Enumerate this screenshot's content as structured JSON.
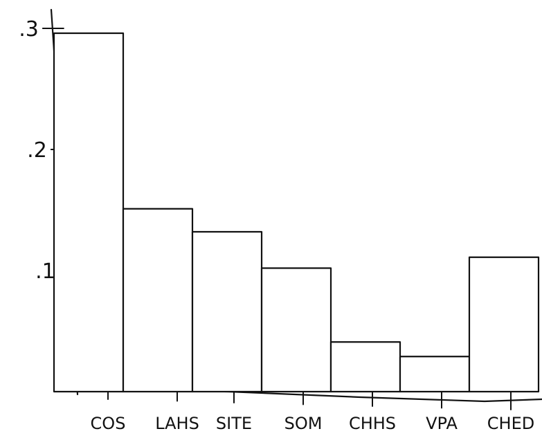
{
  "chart_data": {
    "type": "bar",
    "categories": [
      "COS",
      "LAHS",
      "SITE",
      "SOM",
      "CHHS",
      "VPA",
      "CHED"
    ],
    "values": [
      0.296,
      0.151,
      0.132,
      0.102,
      0.041,
      0.029,
      0.111
    ],
    "yticks": [
      0.1,
      0.2,
      0.3
    ],
    "ytick_labels": [
      ".1",
      ".2",
      ".3"
    ],
    "ylim": [
      0,
      0.32
    ],
    "title": "",
    "xlabel": "",
    "ylabel": "",
    "grid": false,
    "legend": false,
    "style": "hand-drawn sketch, black ink on white"
  }
}
